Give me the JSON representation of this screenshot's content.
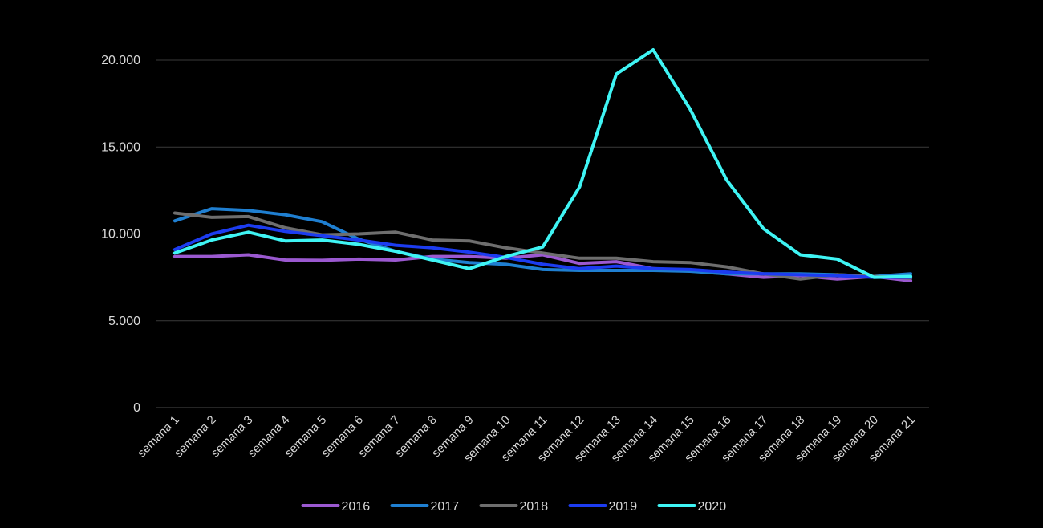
{
  "chart_data": {
    "type": "line",
    "title": "",
    "xlabel": "",
    "ylabel": "",
    "ylim": [
      0,
      20000
    ],
    "yticks": [
      0,
      5000,
      10000,
      15000,
      20000
    ],
    "ytick_labels": [
      "0",
      "5.000",
      "10.000",
      "15.000",
      "20.000"
    ],
    "grid": true,
    "legend_position": "bottom",
    "categories": [
      "semana 1",
      "semana 2",
      "semana 3",
      "semana 4",
      "semana 5",
      "semana 6",
      "semana 7",
      "semana 8",
      "semana 9",
      "semana 10",
      "semana 11",
      "semana 12",
      "semana 13",
      "semana 14",
      "semana 15",
      "semana 16",
      "semana 17",
      "semana 18",
      "semana 19",
      "semana 20",
      "semana 21"
    ],
    "series": [
      {
        "name": "2016",
        "color": "#9b59d0",
        "values": [
          8700,
          8700,
          8800,
          8500,
          8480,
          8550,
          8500,
          8700,
          8700,
          8600,
          8800,
          8300,
          8400,
          8000,
          7900,
          7700,
          7500,
          7600,
          7400,
          7550,
          7300
        ]
      },
      {
        "name": "2017",
        "color": "#1f7fd1",
        "values": [
          10750,
          11450,
          11350,
          11100,
          10700,
          9700,
          9000,
          8550,
          8350,
          8250,
          7950,
          7900,
          7900,
          7900,
          7850,
          7700,
          7700,
          7700,
          7650,
          7550,
          7700
        ]
      },
      {
        "name": "2018",
        "color": "#6e6e6e",
        "values": [
          11200,
          10950,
          11000,
          10350,
          9950,
          10000,
          10100,
          9650,
          9600,
          9200,
          8900,
          8600,
          8600,
          8400,
          8350,
          8100,
          7700,
          7400,
          7650,
          7550,
          7450
        ]
      },
      {
        "name": "2019",
        "color": "#1c3cf0",
        "values": [
          9100,
          10000,
          10500,
          10150,
          9900,
          9650,
          9350,
          9200,
          8950,
          8650,
          8250,
          8000,
          8150,
          8000,
          7950,
          7800,
          7700,
          7650,
          7600,
          7500,
          7500
        ]
      },
      {
        "name": "2020",
        "color": "#3ff4f4",
        "values": [
          8900,
          9650,
          10100,
          9600,
          9650,
          9400,
          9000,
          8500,
          8000,
          8700,
          9250,
          12700,
          19200,
          20600,
          17200,
          13100,
          10300,
          8800,
          8550,
          7500,
          7550
        ]
      }
    ]
  }
}
